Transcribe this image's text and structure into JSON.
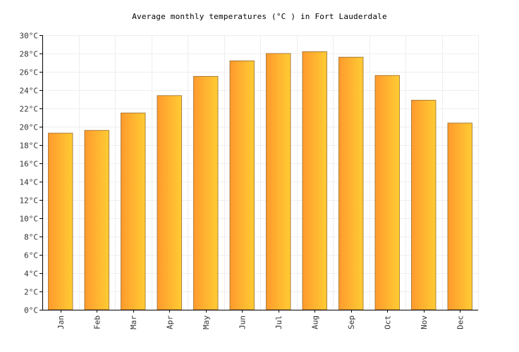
{
  "chart_data": {
    "type": "bar",
    "title": "Average monthly temperatures (°C ) in Fort Lauderdale",
    "categories": [
      "Jan",
      "Feb",
      "Mar",
      "Apr",
      "May",
      "Jun",
      "Jul",
      "Aug",
      "Sep",
      "Oct",
      "Nov",
      "Dec"
    ],
    "values": [
      19.3,
      19.6,
      21.5,
      23.4,
      25.5,
      27.2,
      28.0,
      28.2,
      27.6,
      25.6,
      22.9,
      20.4
    ],
    "ylim": [
      0,
      30
    ],
    "ytick_step": 2,
    "ytick_labels": [
      "0°C",
      "2°C",
      "4°C",
      "6°C",
      "8°C",
      "10°C",
      "12°C",
      "14°C",
      "16°C",
      "18°C",
      "20°C",
      "22°C",
      "24°C",
      "26°C",
      "28°C",
      "30°C"
    ],
    "xlabel": "",
    "ylabel": "",
    "grid": true,
    "colors": {
      "bar_left": "#ff9a2e",
      "bar_right": "#ffcc33",
      "bar_stroke": "#9a6a2a",
      "grid": "#eeeeee",
      "axis": "#000000"
    }
  }
}
